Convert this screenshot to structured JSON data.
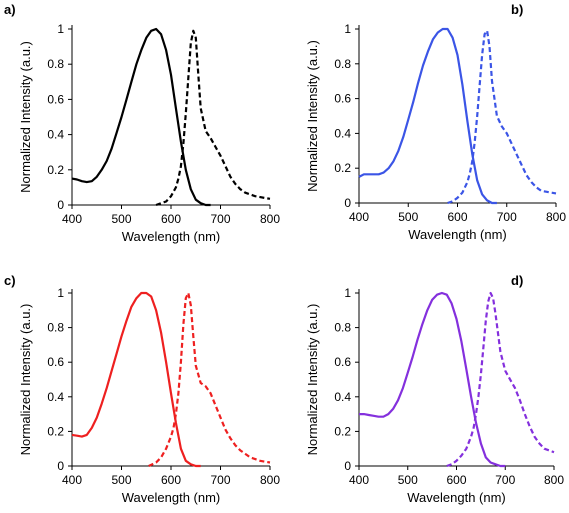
{
  "chart_data": [
    {
      "panel": "a)",
      "type": "line",
      "color": "#000000",
      "xlabel": "Wavelength (nm)",
      "ylabel": "Normalized Intensity (a.u.)",
      "xlim": [
        400,
        800
      ],
      "ylim": [
        0,
        1
      ],
      "xticks": [
        "400",
        "500",
        "600",
        "700",
        "800"
      ],
      "yticks": [
        "0",
        "0.2",
        "0.4",
        "0.6",
        "0.8",
        "1"
      ],
      "series": [
        {
          "style": "solid",
          "x": [
            400,
            410,
            420,
            430,
            440,
            450,
            460,
            470,
            480,
            490,
            500,
            510,
            520,
            530,
            540,
            550,
            560,
            570,
            580,
            590,
            600,
            610,
            620,
            630,
            640,
            650,
            660,
            670,
            680
          ],
          "y": [
            0.15,
            0.145,
            0.135,
            0.13,
            0.135,
            0.16,
            0.2,
            0.25,
            0.32,
            0.41,
            0.5,
            0.6,
            0.7,
            0.8,
            0.88,
            0.95,
            0.99,
            1.0,
            0.97,
            0.88,
            0.74,
            0.55,
            0.36,
            0.2,
            0.09,
            0.03,
            0.01,
            0.0,
            0.0
          ]
        },
        {
          "style": "dashed",
          "x": [
            570,
            580,
            590,
            600,
            610,
            615,
            620,
            625,
            630,
            635,
            640,
            645,
            650,
            655,
            660,
            670,
            680,
            690,
            700,
            710,
            720,
            730,
            740,
            750,
            760,
            770,
            780,
            790,
            800
          ],
          "y": [
            0.0,
            0.01,
            0.02,
            0.05,
            0.1,
            0.15,
            0.22,
            0.35,
            0.52,
            0.72,
            0.92,
            0.99,
            0.95,
            0.75,
            0.55,
            0.42,
            0.38,
            0.33,
            0.28,
            0.22,
            0.16,
            0.12,
            0.09,
            0.07,
            0.06,
            0.05,
            0.045,
            0.04,
            0.035
          ]
        }
      ]
    },
    {
      "panel": "b)",
      "type": "line",
      "color": "#3b55e6",
      "xlabel": "Wavelength (nm)",
      "ylabel": "Normalized Intensity (a.u.)",
      "xlim": [
        400,
        800
      ],
      "ylim": [
        0,
        1
      ],
      "xticks": [
        "400",
        "500",
        "600",
        "700",
        "800"
      ],
      "yticks": [
        "0",
        "0.2",
        "0.4",
        "0.6",
        "0.8",
        "1"
      ],
      "series": [
        {
          "style": "solid",
          "x": [
            400,
            410,
            420,
            430,
            440,
            450,
            460,
            470,
            480,
            490,
            500,
            510,
            520,
            530,
            540,
            550,
            560,
            570,
            580,
            590,
            600,
            610,
            620,
            630,
            640,
            650,
            660,
            670,
            680
          ],
          "y": [
            0.15,
            0.165,
            0.165,
            0.165,
            0.165,
            0.175,
            0.2,
            0.24,
            0.3,
            0.38,
            0.48,
            0.58,
            0.69,
            0.79,
            0.87,
            0.94,
            0.98,
            1.0,
            1.0,
            0.95,
            0.85,
            0.68,
            0.47,
            0.28,
            0.13,
            0.05,
            0.015,
            0.0,
            0.0
          ]
        },
        {
          "style": "dashed",
          "x": [
            580,
            590,
            600,
            610,
            620,
            625,
            630,
            635,
            640,
            645,
            650,
            655,
            660,
            665,
            670,
            680,
            690,
            700,
            710,
            720,
            730,
            740,
            750,
            760,
            770,
            780,
            790,
            800
          ],
          "y": [
            0.0,
            0.01,
            0.03,
            0.06,
            0.12,
            0.17,
            0.24,
            0.35,
            0.5,
            0.68,
            0.85,
            0.97,
            0.99,
            0.9,
            0.7,
            0.5,
            0.44,
            0.4,
            0.34,
            0.28,
            0.22,
            0.16,
            0.12,
            0.09,
            0.07,
            0.065,
            0.06,
            0.055
          ]
        }
      ]
    },
    {
      "panel": "c)",
      "type": "line",
      "color": "#ee2020",
      "xlabel": "Wavelength (nm)",
      "ylabel": "Normalized Intensity (a.u.)",
      "xlim": [
        400,
        800
      ],
      "ylim": [
        0,
        1
      ],
      "xticks": [
        "400",
        "500",
        "600",
        "700",
        "800"
      ],
      "yticks": [
        "0",
        "0.2",
        "0.4",
        "0.6",
        "0.8",
        "1"
      ],
      "series": [
        {
          "style": "solid",
          "x": [
            400,
            410,
            420,
            430,
            440,
            450,
            460,
            470,
            480,
            490,
            500,
            510,
            520,
            530,
            540,
            550,
            560,
            570,
            580,
            590,
            600,
            610,
            620,
            630,
            640,
            650,
            660
          ],
          "y": [
            0.18,
            0.175,
            0.17,
            0.18,
            0.22,
            0.28,
            0.36,
            0.45,
            0.55,
            0.65,
            0.75,
            0.84,
            0.92,
            0.97,
            1.0,
            1.0,
            0.98,
            0.9,
            0.77,
            0.6,
            0.42,
            0.25,
            0.1,
            0.03,
            0.01,
            0.0,
            0.0
          ]
        },
        {
          "style": "dashed",
          "x": [
            555,
            570,
            580,
            590,
            600,
            605,
            610,
            615,
            620,
            625,
            630,
            635,
            640,
            645,
            650,
            660,
            670,
            680,
            690,
            700,
            710,
            720,
            730,
            740,
            750,
            760,
            770,
            780,
            790,
            800
          ],
          "y": [
            0.0,
            0.02,
            0.05,
            0.1,
            0.17,
            0.22,
            0.3,
            0.42,
            0.6,
            0.82,
            0.97,
            1.0,
            0.93,
            0.75,
            0.58,
            0.48,
            0.46,
            0.42,
            0.35,
            0.28,
            0.21,
            0.16,
            0.12,
            0.09,
            0.07,
            0.05,
            0.04,
            0.03,
            0.025,
            0.02
          ]
        }
      ]
    },
    {
      "panel": "d)",
      "type": "line",
      "color": "#8430dd",
      "xlabel": "Wavelength (nm)",
      "ylabel": "Normalized Intensity (a.u.)",
      "xlim": [
        400,
        800
      ],
      "ylim": [
        0,
        1
      ],
      "xticks": [
        "400",
        "500",
        "600",
        "700",
        "800"
      ],
      "yticks": [
        "0",
        "0.2",
        "0.4",
        "0.6",
        "0.8",
        "1"
      ],
      "series": [
        {
          "style": "solid",
          "x": [
            400,
            410,
            420,
            430,
            440,
            450,
            460,
            470,
            480,
            490,
            500,
            510,
            520,
            530,
            540,
            550,
            560,
            570,
            580,
            590,
            600,
            610,
            620,
            630,
            640,
            650,
            660,
            670,
            680,
            690,
            700
          ],
          "y": [
            0.3,
            0.3,
            0.295,
            0.29,
            0.285,
            0.285,
            0.3,
            0.33,
            0.38,
            0.45,
            0.54,
            0.63,
            0.73,
            0.82,
            0.9,
            0.96,
            0.99,
            1.0,
            0.99,
            0.94,
            0.85,
            0.72,
            0.56,
            0.4,
            0.25,
            0.13,
            0.05,
            0.02,
            0.01,
            0.0,
            0.0
          ]
        },
        {
          "style": "dashed",
          "x": [
            580,
            590,
            600,
            610,
            620,
            630,
            635,
            640,
            645,
            650,
            655,
            660,
            665,
            670,
            675,
            680,
            690,
            700,
            710,
            720,
            730,
            740,
            750,
            760,
            770,
            780,
            790,
            800
          ],
          "y": [
            0.0,
            0.01,
            0.03,
            0.06,
            0.1,
            0.17,
            0.22,
            0.3,
            0.4,
            0.53,
            0.68,
            0.84,
            0.95,
            1.0,
            0.97,
            0.88,
            0.66,
            0.55,
            0.5,
            0.45,
            0.38,
            0.3,
            0.23,
            0.17,
            0.13,
            0.1,
            0.09,
            0.08
          ]
        }
      ]
    }
  ]
}
